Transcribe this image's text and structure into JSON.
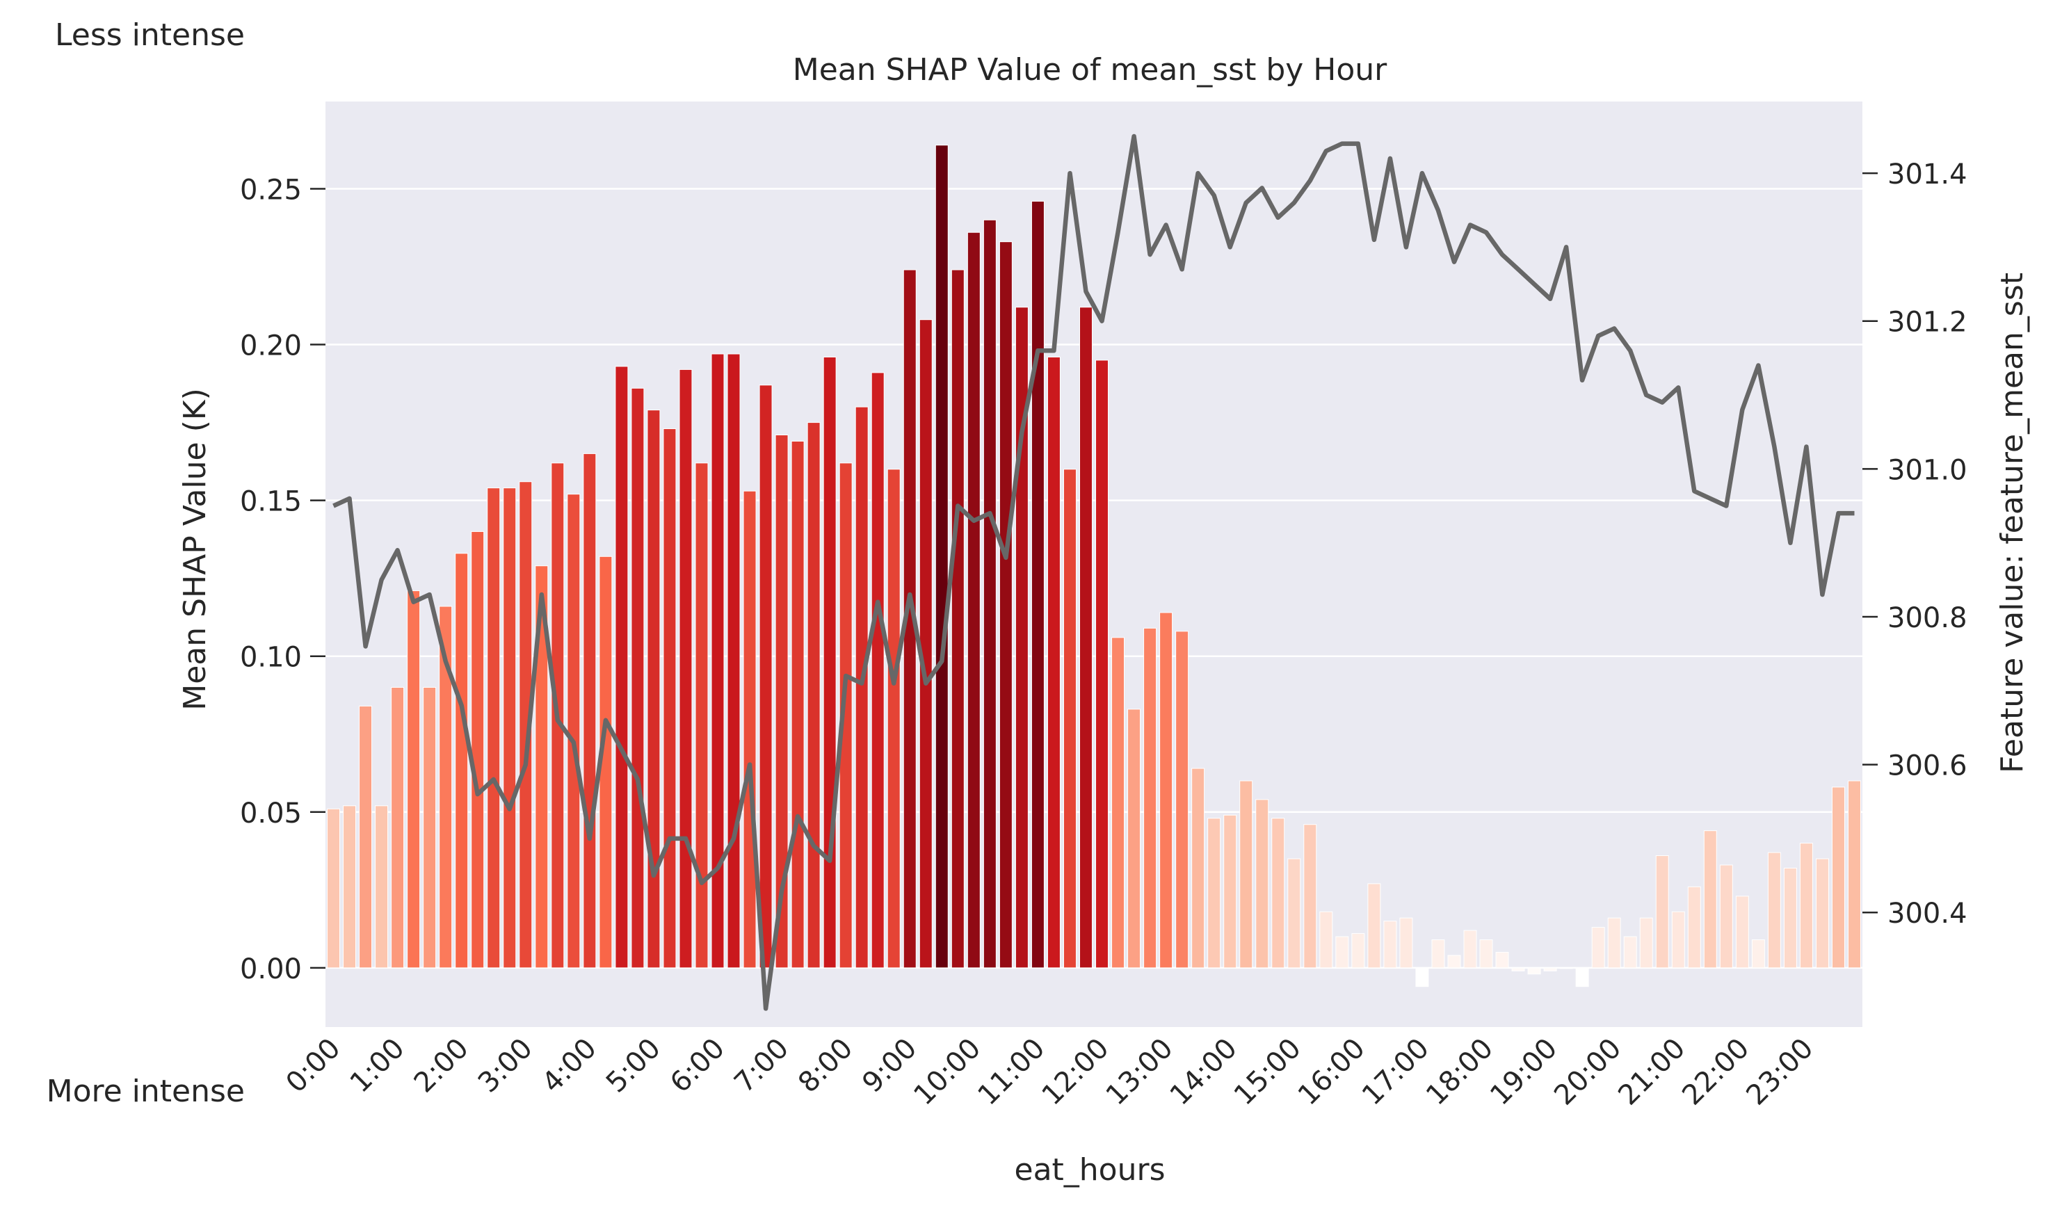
{
  "chart_data": {
    "type": "bar",
    "title": "Mean SHAP Value of mean_sst by Hour",
    "xlabel": "eat_hours",
    "ylabel": "Mean SHAP Value (K)",
    "y2label": "Feature value: feature_mean_sst",
    "legend_top": "Less intense",
    "legend_bottom": "More intense",
    "ylim": [
      -0.019,
      0.278
    ],
    "y2lim": [
      300.245,
      301.497
    ],
    "yticks": [
      0.0,
      0.05,
      0.1,
      0.15,
      0.2,
      0.25
    ],
    "ytick_labels": [
      "0.00",
      "0.05",
      "0.10",
      "0.15",
      "0.20",
      "0.25"
    ],
    "y2ticks": [
      300.4,
      300.6,
      300.8,
      301.0,
      301.2,
      301.4
    ],
    "y2tick_labels": [
      "300.4",
      "300.6",
      "300.8",
      "301.0",
      "301.2",
      "301.4"
    ],
    "xtick_labels": [
      "0:00",
      "1:00",
      "2:00",
      "3:00",
      "4:00",
      "5:00",
      "6:00",
      "7:00",
      "8:00",
      "9:00",
      "10:00",
      "11:00",
      "12:00",
      "13:00",
      "14:00",
      "15:00",
      "16:00",
      "17:00",
      "18:00",
      "19:00",
      "20:00",
      "21:00",
      "22:00",
      "23:00"
    ],
    "grid": true,
    "colors": {
      "background": "#eaeaf2",
      "grid": "#ffffff",
      "line": "#676767",
      "bar_scale": [
        "#ffffff",
        "#fcbba1",
        "#fb6a4a",
        "#cb181d",
        "#67000d"
      ]
    },
    "series": [
      {
        "type": "bar",
        "values": [
          0.051,
          0.052,
          0.084,
          0.052,
          0.09,
          0.121,
          0.09,
          0.116,
          0.133,
          0.14,
          0.154,
          0.154,
          0.156,
          0.129,
          0.162,
          0.152,
          0.165,
          0.132,
          0.193,
          0.186,
          0.179,
          0.173,
          0.192,
          0.162,
          0.197,
          0.197,
          0.153,
          0.187,
          0.171,
          0.169,
          0.175,
          0.196,
          0.162,
          0.18,
          0.191,
          0.16,
          0.224,
          0.208,
          0.264,
          0.224,
          0.236,
          0.24,
          0.233,
          0.212,
          0.246,
          0.196,
          0.16,
          0.212,
          0.195,
          0.106,
          0.083,
          0.109,
          0.114,
          0.108,
          0.064,
          0.048,
          0.049,
          0.06,
          0.054,
          0.048,
          0.035,
          0.046,
          0.018,
          0.01,
          0.011,
          0.027,
          0.015,
          0.016,
          -0.006,
          0.009,
          0.004,
          0.012,
          0.009,
          0.005,
          -0.001,
          -0.002,
          -0.001,
          0.0,
          -0.006,
          0.013,
          0.016,
          0.01,
          0.016,
          0.036,
          0.018,
          0.026,
          0.044,
          0.033,
          0.023,
          0.009,
          0.037,
          0.032,
          0.04,
          0.035,
          0.058,
          0.06
        ]
      },
      {
        "type": "line",
        "axis": "right",
        "values": [
          300.95,
          300.96,
          300.76,
          300.85,
          300.89,
          300.82,
          300.83,
          300.74,
          300.68,
          300.56,
          300.58,
          300.54,
          300.6,
          300.83,
          300.66,
          300.63,
          300.5,
          300.66,
          300.62,
          300.58,
          300.45,
          300.5,
          300.5,
          300.44,
          300.46,
          300.5,
          300.6,
          300.27,
          300.43,
          300.53,
          300.49,
          300.47,
          300.72,
          300.71,
          300.82,
          300.71,
          300.83,
          300.71,
          300.74,
          300.95,
          300.93,
          300.94,
          300.88,
          301.05,
          301.16,
          301.16,
          301.4,
          301.24,
          301.2,
          301.32,
          301.45,
          301.29,
          301.33,
          301.27,
          301.4,
          301.37,
          301.3,
          301.36,
          301.38,
          301.34,
          301.36,
          301.39,
          301.43,
          301.44,
          301.44,
          301.31,
          301.42,
          301.3,
          301.4,
          301.35,
          301.28,
          301.33,
          301.32,
          301.29,
          301.27,
          301.25,
          301.23,
          301.3,
          301.12,
          301.18,
          301.19,
          301.16,
          301.1,
          301.09,
          301.11,
          300.97,
          300.96,
          300.95,
          301.08,
          301.14,
          301.03,
          300.9,
          301.03,
          300.83,
          300.94,
          300.94
        ]
      }
    ]
  }
}
